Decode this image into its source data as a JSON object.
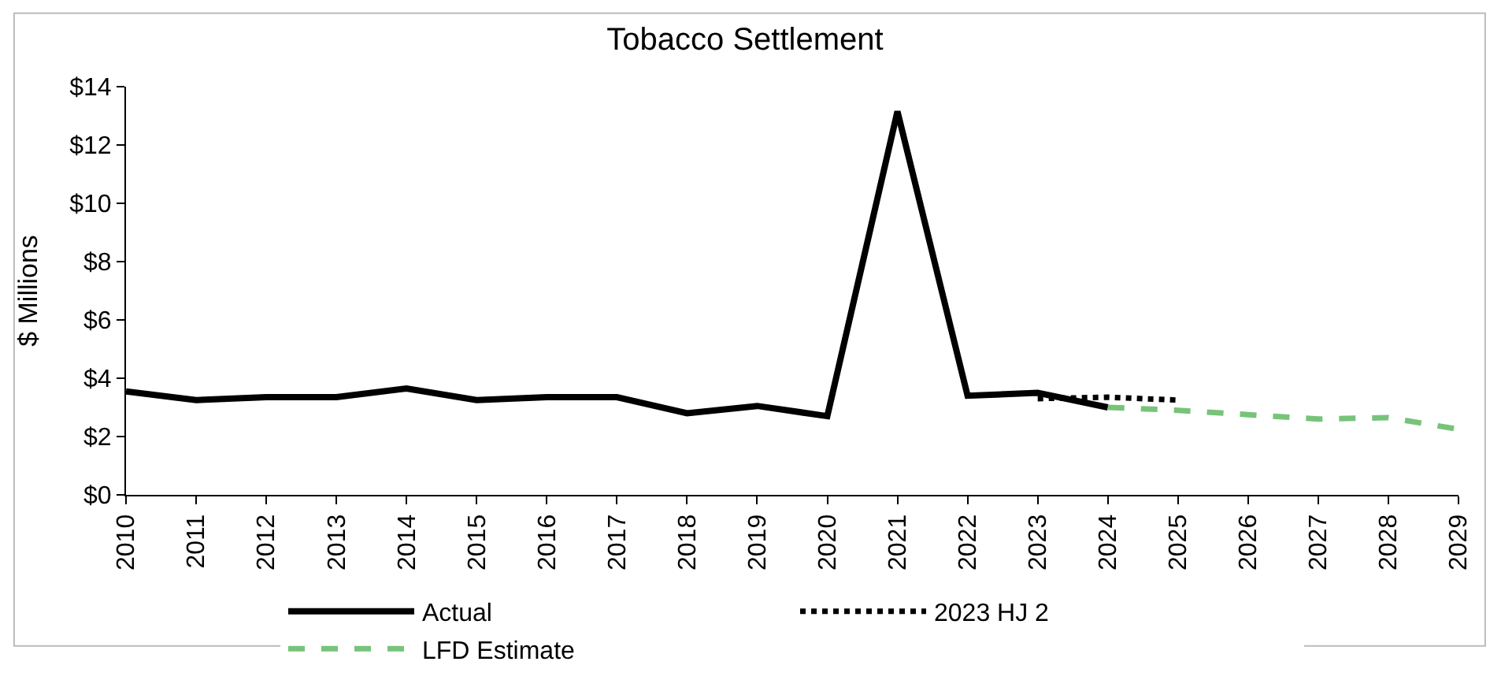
{
  "chart_data": {
    "type": "line",
    "title": "Tobacco Settlement",
    "ylabel": "$ Millions",
    "categories": [
      "2010",
      "2011",
      "2012",
      "2013",
      "2014",
      "2015",
      "2016",
      "2017",
      "2018",
      "2019",
      "2020",
      "2021",
      "2022",
      "2023",
      "2024",
      "2025",
      "2026",
      "2027",
      "2028",
      "2029"
    ],
    "ylim": [
      0,
      14
    ],
    "yticks": [
      {
        "value": 0,
        "label": "$0"
      },
      {
        "value": 2,
        "label": "$2"
      },
      {
        "value": 4,
        "label": "$4"
      },
      {
        "value": 6,
        "label": "$6"
      },
      {
        "value": 8,
        "label": "$8"
      },
      {
        "value": 10,
        "label": "$10"
      },
      {
        "value": 12,
        "label": "$12"
      },
      {
        "value": 14,
        "label": "$14"
      }
    ],
    "series": [
      {
        "name": "Actual",
        "color": "#000000",
        "line_style": "solid",
        "values": [
          3.55,
          3.25,
          3.35,
          3.35,
          3.65,
          3.25,
          3.35,
          3.35,
          2.8,
          3.05,
          2.7,
          13.15,
          3.4,
          3.5,
          3.0,
          null,
          null,
          null,
          null,
          null
        ]
      },
      {
        "name": "2023 HJ 2",
        "color": "#000000",
        "line_style": "dotted",
        "values": [
          null,
          null,
          null,
          null,
          null,
          null,
          null,
          null,
          null,
          null,
          null,
          null,
          null,
          3.3,
          3.35,
          3.25,
          null,
          null,
          null,
          null
        ]
      },
      {
        "name": "LFD Estimate",
        "color": "#77c37a",
        "line_style": "dashed",
        "values": [
          null,
          null,
          null,
          null,
          null,
          null,
          null,
          null,
          null,
          null,
          null,
          null,
          null,
          null,
          3.0,
          2.9,
          2.75,
          2.6,
          2.65,
          2.25
        ]
      }
    ],
    "legend": "bottom",
    "marker": "none"
  }
}
